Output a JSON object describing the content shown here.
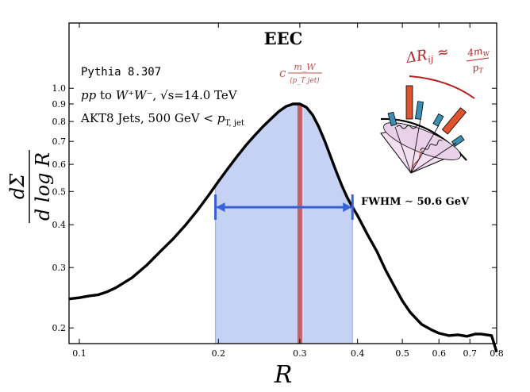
{
  "chart_data": {
    "type": "line",
    "title": "EEC",
    "xlabel": "R",
    "ylabel": "dΣ / d log R",
    "x_scale": "log",
    "y_scale": "log",
    "xlim": [
      0.095,
      0.8
    ],
    "ylim": [
      0.18,
      1.55
    ],
    "x_ticks": [
      {
        "value": 0.1,
        "label": "0.1"
      },
      {
        "value": 0.2,
        "label": "0.2"
      },
      {
        "value": 0.3,
        "label": "0.3"
      },
      {
        "value": 0.4,
        "label": "0.4"
      },
      {
        "value": 0.5,
        "label": "0.5"
      },
      {
        "value": 0.6,
        "label": "0.6"
      },
      {
        "value": 0.7,
        "label": "0.7"
      },
      {
        "value": 0.8,
        "label": "0.8"
      }
    ],
    "y_ticks": [
      {
        "value": 0.2,
        "label": "0.2"
      },
      {
        "value": 0.3,
        "label": "0.3"
      },
      {
        "value": 0.4,
        "label": "0.4"
      },
      {
        "value": 0.5,
        "label": "0.5"
      },
      {
        "value": 0.6,
        "label": "0.6"
      },
      {
        "value": 0.7,
        "label": "0.7"
      },
      {
        "value": 0.8,
        "label": "0.8"
      },
      {
        "value": 0.9,
        "label": "0.9"
      },
      {
        "value": 1.0,
        "label": "1.0"
      }
    ],
    "series": [
      {
        "color": "#000000",
        "x": [
          0.095,
          0.1,
          0.105,
          0.11,
          0.115,
          0.12,
          0.13,
          0.14,
          0.15,
          0.16,
          0.17,
          0.18,
          0.19,
          0.2,
          0.21,
          0.22,
          0.23,
          0.24,
          0.25,
          0.26,
          0.27,
          0.28,
          0.29,
          0.3,
          0.31,
          0.32,
          0.33,
          0.34,
          0.35,
          0.36,
          0.37,
          0.38,
          0.39,
          0.4,
          0.42,
          0.44,
          0.46,
          0.48,
          0.5,
          0.52,
          0.55,
          0.58,
          0.6,
          0.63,
          0.66,
          0.69,
          0.72,
          0.74,
          0.76,
          0.78,
          0.8
        ],
        "y": [
          0.243,
          0.245,
          0.248,
          0.25,
          0.255,
          0.262,
          0.28,
          0.305,
          0.335,
          0.365,
          0.4,
          0.44,
          0.485,
          0.535,
          0.585,
          0.635,
          0.685,
          0.73,
          0.775,
          0.815,
          0.855,
          0.885,
          0.9,
          0.9,
          0.88,
          0.835,
          0.77,
          0.7,
          0.63,
          0.57,
          0.52,
          0.48,
          0.45,
          0.425,
          0.375,
          0.335,
          0.295,
          0.265,
          0.24,
          0.222,
          0.205,
          0.197,
          0.193,
          0.19,
          0.191,
          0.189,
          0.192,
          0.192,
          0.191,
          0.19,
          0.17
        ]
      }
    ],
    "peak_line": {
      "x": 0.3,
      "color": "#c0504d",
      "label": "c m_W / ⟨p_T jet⟩"
    },
    "fwhm": {
      "x_left": 0.197,
      "x_right": 0.39,
      "y": 0.45,
      "label": "FWHM ∼ 50.6 GeV",
      "color": "#3a62d8",
      "fill": "#c5d2f3"
    },
    "annotations": [
      "Pythia 8.307",
      "pp to W⁺W⁻, √s=14.0 TeV",
      "AKT8 Jets, 500 GeV < p_T,jet"
    ],
    "inset_label": "ΔR_ij ≈ 4m_W / p_T",
    "grid": false
  },
  "labels": {
    "title": "EEC",
    "xlabel": "R",
    "yl_num": "dΣ",
    "yl_den": "d log R",
    "pythia": "Pythia 8.307",
    "proc_pp": "pp",
    "proc_to": " to ",
    "proc_ww": "W⁺W⁻",
    "proc_sqrt": ", √s=14.0 TeV",
    "akt_main": "AKT8 Jets, 500 GeV < ",
    "akt_pt": "p",
    "akt_sub": "T, jet",
    "peak_c": "c",
    "peak_num": "m_W",
    "peak_den": "⟨p_T jet⟩",
    "fwhm": "FWHM ∼ 50.6 GeV",
    "inset_lhs": "ΔR",
    "inset_lhs_sub": "ij",
    "inset_approx": " ≈ ",
    "inset_num": "4m",
    "inset_num_sub": "W",
    "inset_den": "p",
    "inset_den_sub": "T"
  }
}
